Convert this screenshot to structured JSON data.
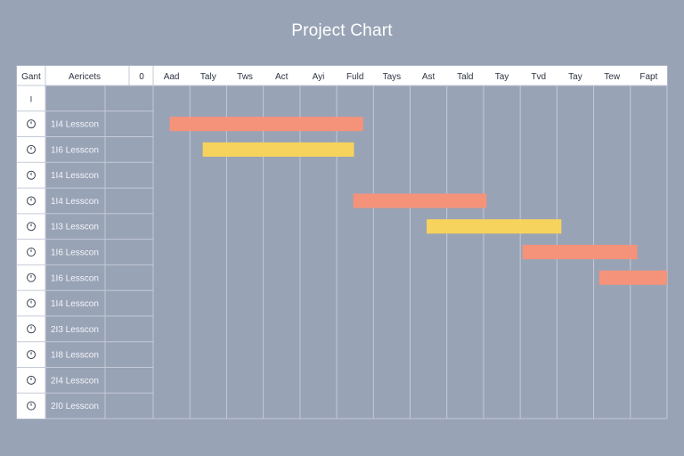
{
  "title": "Project Chart",
  "header": {
    "col1": "Gant",
    "col2": "Aericets",
    "zero_mark": "0",
    "first_row_mark": "I"
  },
  "chart_data": {
    "type": "bar",
    "title": "Project Chart",
    "time_columns": [
      "Aad",
      "Taly",
      "Tws",
      "Act",
      "Ayi",
      "Fuld",
      "Tays",
      "Ast",
      "Tald",
      "Tay",
      "Tvd",
      "Tay",
      "Tew",
      "Fapt"
    ],
    "rows": [
      {
        "icon": "◷",
        "label": "1I4 Lesscon"
      },
      {
        "icon": "◷",
        "label": "1I6 Lesscon"
      },
      {
        "icon": "◷",
        "label": "1I4 Lesscon"
      },
      {
        "icon": "◷",
        "label": "1I4 Lesscon"
      },
      {
        "icon": "◷",
        "label": "1I3 Lesscon"
      },
      {
        "icon": "◷",
        "label": "1I6 Lesscon"
      },
      {
        "icon": "◷",
        "label": "1I6 Lesscon"
      },
      {
        "icon": "◷",
        "label": "1I4 Lesscon"
      },
      {
        "icon": "◷",
        "label": "2I3 Lesscon"
      },
      {
        "icon": "◷",
        "label": "1I8 Lesscon"
      },
      {
        "icon": "◷",
        "label": "2I4 Lesscon"
      },
      {
        "icon": "◷",
        "label": "2I0 Lesscon"
      }
    ],
    "tasks": [
      {
        "row": 1,
        "start": 0.45,
        "end": 5.72,
        "color": "#f4937a"
      },
      {
        "row": 2,
        "start": 1.35,
        "end": 5.47,
        "color": "#f6d35c"
      },
      {
        "row": 4,
        "start": 5.45,
        "end": 9.08,
        "color": "#f4937a"
      },
      {
        "row": 5,
        "start": 7.45,
        "end": 11.12,
        "color": "#f6d35c"
      },
      {
        "row": 6,
        "start": 10.06,
        "end": 13.19,
        "color": "#f4937a"
      },
      {
        "row": 7,
        "start": 12.15,
        "end": 14.0,
        "color": "#f4937a"
      }
    ],
    "colors": {
      "salmon": "#f4937a",
      "yellow": "#f6d35c",
      "grid": "#c4cad6",
      "header_bg": "#ffffff",
      "icon_column_bg": "#ffffff"
    }
  }
}
